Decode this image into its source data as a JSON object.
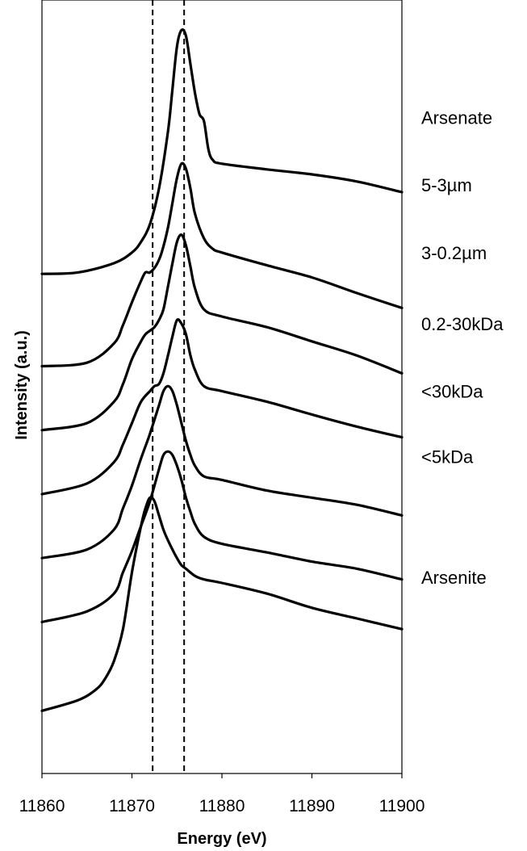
{
  "chart_data": {
    "type": "line",
    "title": "",
    "xlabel": "Energy (eV)",
    "ylabel": "Intensity (a.u.)",
    "xlim": [
      11860,
      11900
    ],
    "xticks": [
      11860,
      11870,
      11880,
      11890,
      11900
    ],
    "ylim": [
      0,
      10
    ],
    "y_ticks_shown": false,
    "grid": false,
    "legend": "none",
    "reference_lines_x": [
      11872.3,
      11875.8
    ],
    "series": [
      {
        "name": "Arsenate",
        "label_y": 8.8,
        "x": [
          11860,
          11864,
          11868,
          11870,
          11871,
          11872,
          11873,
          11874,
          11874.5,
          11875,
          11875.5,
          11876,
          11876.5,
          11877,
          11877.5,
          11878,
          11878.5,
          11879,
          11880,
          11885,
          11890,
          11895,
          11900
        ],
        "y": [
          6.6,
          6.62,
          6.75,
          6.9,
          7.05,
          7.3,
          7.8,
          8.6,
          9.2,
          9.8,
          10.03,
          9.95,
          9.55,
          9.15,
          8.85,
          8.75,
          8.35,
          8.2,
          8.15,
          8.07,
          8.0,
          7.9,
          7.75
        ]
      },
      {
        "name": "5-3µm",
        "label_y": 7.85,
        "x": [
          11860,
          11865,
          11868,
          11869,
          11870,
          11871,
          11871.5,
          11872,
          11872.7,
          11873.3,
          11874,
          11874.5,
          11875,
          11875.5,
          11876,
          11876.5,
          11877,
          11878,
          11879,
          11880,
          11885,
          11890,
          11895,
          11900
        ],
        "y": [
          5.3,
          5.35,
          5.62,
          5.88,
          6.2,
          6.5,
          6.62,
          6.62,
          6.72,
          6.9,
          7.25,
          7.6,
          7.95,
          8.15,
          8.08,
          7.8,
          7.45,
          7.1,
          6.95,
          6.9,
          6.72,
          6.55,
          6.33,
          6.12
        ]
      },
      {
        "name": "3-0.2µm",
        "label_y": 6.9,
        "x": [
          11860,
          11865,
          11868,
          11869,
          11870,
          11871,
          11871.5,
          11872,
          11872.5,
          11873,
          11873.5,
          11874,
          11874.5,
          11875,
          11875.5,
          11876,
          11876.5,
          11877,
          11878,
          11880,
          11885,
          11890,
          11895,
          11900
        ],
        "y": [
          4.4,
          4.5,
          4.8,
          5.05,
          5.4,
          5.65,
          5.75,
          5.8,
          5.85,
          5.95,
          6.1,
          6.42,
          6.75,
          7.05,
          7.15,
          7.0,
          6.7,
          6.4,
          6.1,
          6.0,
          5.85,
          5.65,
          5.45,
          5.2
        ]
      },
      {
        "name": "0.2-30kDa",
        "label_y": 5.9,
        "x": [
          11860,
          11865,
          11868,
          11869,
          11870,
          11871,
          11872,
          11872.5,
          11873,
          11873.5,
          11874,
          11874.5,
          11875,
          11875.5,
          11876,
          11876.5,
          11877,
          11878,
          11880,
          11885,
          11890,
          11895,
          11900
        ],
        "y": [
          3.5,
          3.65,
          3.95,
          4.2,
          4.5,
          4.8,
          4.95,
          5.02,
          5.05,
          5.2,
          5.45,
          5.72,
          5.95,
          5.9,
          5.75,
          5.45,
          5.25,
          5.02,
          4.95,
          4.8,
          4.62,
          4.45,
          4.3
        ]
      },
      {
        "name": "<30kDa",
        "label_y": 4.95,
        "x": [
          11860,
          11865,
          11868,
          11869,
          11870,
          11871,
          11872,
          11873,
          11873.5,
          11874,
          11874.5,
          11875,
          11875.5,
          11876,
          11876.5,
          11877,
          11878,
          11880,
          11885,
          11890,
          11895,
          11900
        ],
        "y": [
          2.6,
          2.72,
          3.0,
          3.3,
          3.62,
          4.0,
          4.35,
          4.75,
          4.95,
          5.02,
          4.95,
          4.75,
          4.5,
          4.25,
          4.05,
          3.9,
          3.75,
          3.7,
          3.55,
          3.45,
          3.35,
          3.2
        ]
      },
      {
        "name": "<5kDa",
        "label_y": 4.03,
        "x": [
          11860,
          11865,
          11868,
          11869,
          11870,
          11871,
          11872,
          11873,
          11873.5,
          11874,
          11874.5,
          11875,
          11875.5,
          11876,
          11876.5,
          11877,
          11878,
          11880,
          11885,
          11890,
          11895,
          11900
        ],
        "y": [
          1.7,
          1.85,
          2.1,
          2.4,
          2.7,
          3.05,
          3.4,
          3.85,
          4.05,
          4.1,
          4.05,
          3.9,
          3.7,
          3.45,
          3.25,
          3.08,
          2.9,
          2.8,
          2.68,
          2.55,
          2.45,
          2.3
        ]
      },
      {
        "name": "Arsenite",
        "label_y": 2.33,
        "x": [
          11860,
          11864,
          11866,
          11867,
          11868,
          11869,
          11870,
          11871,
          11871.5,
          11872,
          11872.5,
          11873,
          11873.5,
          11874,
          11874.5,
          11875,
          11875.5,
          11876,
          11877,
          11878,
          11880,
          11885,
          11890,
          11895,
          11900
        ],
        "y": [
          0.45,
          0.6,
          0.75,
          0.9,
          1.15,
          1.6,
          2.4,
          3.05,
          3.3,
          3.45,
          3.4,
          3.2,
          3.0,
          2.85,
          2.72,
          2.6,
          2.5,
          2.45,
          2.35,
          2.3,
          2.25,
          2.1,
          1.9,
          1.75,
          1.6
        ]
      }
    ]
  }
}
